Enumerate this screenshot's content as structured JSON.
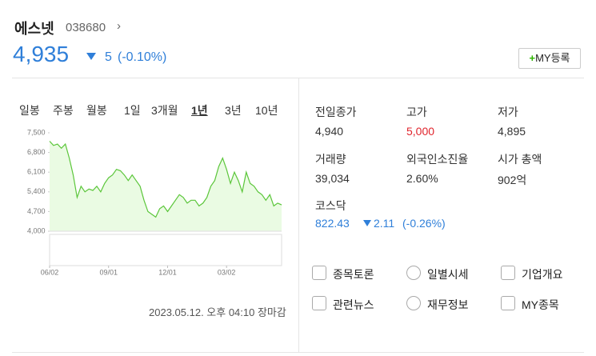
{
  "header": {
    "name": "에스넷",
    "code": "038680",
    "price": "4,935",
    "change": "5",
    "rate": "(-0.10%)",
    "button": "MY등록"
  },
  "tabs": {
    "items": [
      "일봉",
      "주봉",
      "월봉",
      "1일",
      "3개월",
      "1년",
      "3년",
      "10년"
    ],
    "active": 5
  },
  "chart_data": {
    "type": "line",
    "x": [
      "06/02",
      null,
      null,
      null,
      null,
      null,
      null,
      null,
      null,
      null,
      null,
      null,
      null,
      null,
      null,
      "09/01",
      null,
      null,
      null,
      null,
      null,
      null,
      null,
      null,
      null,
      null,
      null,
      null,
      null,
      null,
      "12/01",
      null,
      null,
      null,
      null,
      null,
      null,
      null,
      null,
      null,
      null,
      null,
      null,
      null,
      null,
      "03/02",
      null,
      null,
      null,
      null,
      null,
      null,
      null,
      null,
      null,
      null,
      null,
      null,
      null,
      null
    ],
    "series": [
      {
        "color": "#5bc63a",
        "values": [
          7200,
          7050,
          7100,
          6950,
          7100,
          6600,
          6000,
          5200,
          5600,
          5400,
          5500,
          5450,
          5600,
          5400,
          5700,
          5900,
          6000,
          6200,
          6150,
          6000,
          5800,
          6000,
          5800,
          5600,
          5100,
          4700,
          4600,
          4500,
          4800,
          4900,
          4700,
          4900,
          5100,
          5300,
          5200,
          5000,
          5100,
          5100,
          4900,
          5000,
          5200,
          5600,
          5800,
          6300,
          6600,
          6200,
          5700,
          6100,
          5800,
          5400,
          6100,
          5700,
          5600,
          5400,
          5300,
          5100,
          5300,
          4900,
          5000,
          4935
        ]
      }
    ],
    "ylim": [
      4000,
      7500
    ],
    "yticks": [
      {
        "value": 7500,
        "label": "7,500"
      },
      {
        "value": 6800,
        "label": "6,800"
      },
      {
        "value": 6100,
        "label": "6,100"
      },
      {
        "value": 5400,
        "label": "5,400"
      },
      {
        "value": 4700,
        "label": "4,700"
      },
      {
        "value": 4000,
        "label": "4,000"
      }
    ],
    "area_color": "#eafbe3"
  },
  "stats": [
    {
      "label": "전일종가",
      "value": "4,940"
    },
    {
      "label": "고가",
      "value": "5,000"
    },
    {
      "label": "저가",
      "value": "4,895"
    },
    {
      "label": "거래량",
      "value": "39,034"
    },
    {
      "label": "외국인소진율",
      "value": "2.60%"
    },
    {
      "label": "시가 총액",
      "value": "902억"
    }
  ],
  "index": {
    "name": "코스닥",
    "value": "822.43",
    "change": "2.11",
    "rate": "(-0.26%)"
  },
  "links": [
    "종목토론",
    "일별시세",
    "기업개요",
    "관련뉴스",
    "재무정보",
    "MY종목"
  ],
  "timestamp": "2023.05.12. 오후 04:10 장마감"
}
